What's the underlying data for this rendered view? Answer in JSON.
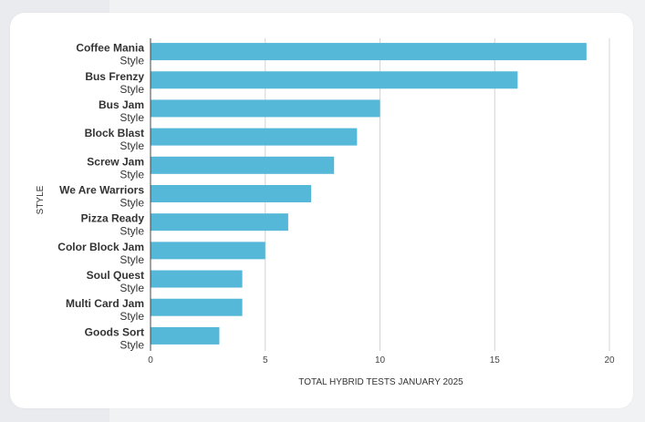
{
  "chart_data": {
    "type": "bar",
    "orientation": "horizontal",
    "categories": [
      {
        "name": "Coffee Mania",
        "sub": "Style"
      },
      {
        "name": "Bus Frenzy",
        "sub": "Style"
      },
      {
        "name": "Bus Jam",
        "sub": "Style"
      },
      {
        "name": "Block Blast",
        "sub": "Style"
      },
      {
        "name": "Screw Jam",
        "sub": "Style"
      },
      {
        "name": "We Are Warriors",
        "sub": "Style"
      },
      {
        "name": "Pizza Ready",
        "sub": "Style"
      },
      {
        "name": "Color Block Jam",
        "sub": "Style"
      },
      {
        "name": "Soul Quest",
        "sub": "Style"
      },
      {
        "name": "Multi Card Jam",
        "sub": "Style"
      },
      {
        "name": "Goods Sort",
        "sub": "Style"
      }
    ],
    "values": [
      19,
      16,
      10,
      9,
      8,
      7,
      6,
      5,
      4,
      4,
      3
    ],
    "xlabel": "TOTAL HYBRID TESTS JANUARY 2025",
    "ylabel": "STYLE",
    "xlim": [
      0,
      20
    ],
    "xticks": [
      0,
      5,
      10,
      15,
      20
    ],
    "bar_color": "#56b8d8",
    "grid": true
  }
}
